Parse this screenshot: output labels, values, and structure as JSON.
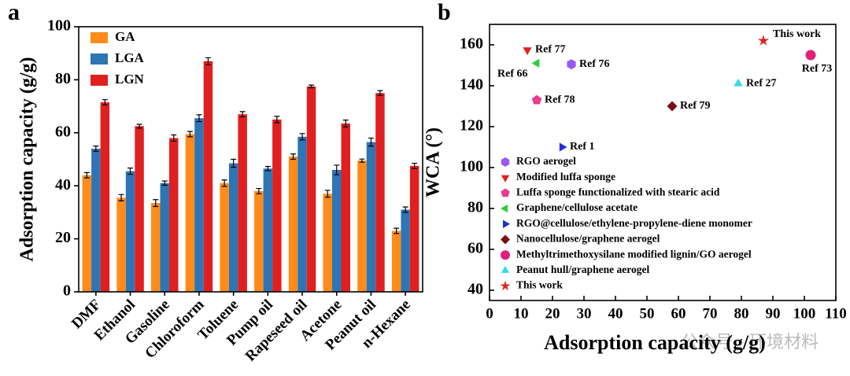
{
  "chart_data": [
    {
      "type": "bar",
      "panel_label": "a",
      "ylabel": "Adsorption capacity (g/g)",
      "categories": [
        "DMF",
        "Ethanol",
        "Gasoline",
        "Chloroform",
        "Toluene",
        "Pump oil",
        "Rapeseed oil",
        "Acetone",
        "Peanut oil",
        "n-Hexane"
      ],
      "series": [
        {
          "name": "GA",
          "color": "#ff8c1a",
          "values": [
            44,
            35.5,
            33.5,
            59.5,
            41,
            38,
            51,
            37,
            49.5,
            23
          ],
          "errors": [
            1,
            1.2,
            1.3,
            1,
            1.2,
            1,
            1,
            1.3,
            0.6,
            1
          ]
        },
        {
          "name": "LGA",
          "color": "#2e75b6",
          "values": [
            54,
            45.5,
            41,
            65.5,
            48.5,
            46.5,
            58.5,
            46,
            56.5,
            31
          ],
          "errors": [
            1,
            1.2,
            0.8,
            1.3,
            1.5,
            0.8,
            1.2,
            1.8,
            1.5,
            1
          ]
        },
        {
          "name": "LGN",
          "color": "#e02020",
          "values": [
            71.5,
            62.5,
            58,
            87,
            67,
            65,
            77.5,
            63.5,
            75,
            47.5
          ],
          "errors": [
            1,
            0.7,
            1.2,
            1.3,
            1,
            1.2,
            0.5,
            1.3,
            0.9,
            1
          ]
        }
      ],
      "ylim": [
        0,
        100
      ],
      "yticks": [
        0,
        20,
        40,
        60,
        80,
        100
      ],
      "legend": "upper left"
    },
    {
      "type": "scatter",
      "panel_label": "b",
      "xlabel": "Adsorption capacity (g/g)",
      "ylabel": "WCA (°)",
      "series": [
        {
          "name": "RGO aerogel",
          "label": "Ref 76",
          "color": "#9b59f0",
          "marker": "hexagon",
          "x": [
            26
          ],
          "y": [
            150.5
          ]
        },
        {
          "name": "Modified luffa sponge",
          "label": "Ref 77",
          "color": "#e02020",
          "marker": "triangle-down",
          "x": [
            12
          ],
          "y": [
            157.5
          ]
        },
        {
          "name": "Luffa sponge functionalized with stearic acid",
          "label": "Ref 78",
          "color": "#e83e8c",
          "marker": "pentagon",
          "x": [
            15
          ],
          "y": [
            133
          ]
        },
        {
          "name": "Graphene/cellulose acetate",
          "label": "Ref 66",
          "color": "#2ecc40",
          "marker": "triangle-left",
          "x": [
            15
          ],
          "y": [
            151
          ]
        },
        {
          "name": "RGO@cellulose/ethylene-propylene-diene monomer",
          "label": "Ref 1",
          "color": "#1f2fd6",
          "marker": "triangle-right",
          "x": [
            23
          ],
          "y": [
            110
          ]
        },
        {
          "name": "Nanocellulose/graphene aerogel",
          "label": "Ref 79",
          "color": "#7a1010",
          "marker": "diamond",
          "x": [
            58
          ],
          "y": [
            130
          ]
        },
        {
          "name": "Methyltrimethoxysilane modified lignin/GO aerogel",
          "label": "Ref 73",
          "color": "#e0207a",
          "marker": "circle",
          "x": [
            102
          ],
          "y": [
            155
          ]
        },
        {
          "name": "Peanut hull/graphene aerogel",
          "label": "Ref 27",
          "color": "#2fe0e6",
          "marker": "triangle-up",
          "x": [
            79
          ],
          "y": [
            141
          ]
        },
        {
          "name": "This work",
          "label": "This work",
          "color": "#e02020",
          "marker": "star",
          "x": [
            87
          ],
          "y": [
            162
          ]
        }
      ],
      "xlim": [
        0,
        110
      ],
      "xticks": [
        0,
        10,
        20,
        30,
        40,
        50,
        60,
        70,
        80,
        90,
        100,
        110
      ],
      "ylim": [
        35,
        170
      ],
      "yticks": [
        40,
        60,
        80,
        100,
        120,
        140,
        160
      ],
      "legend": "lower left"
    }
  ],
  "watermark": "公众号 · 环境材料"
}
